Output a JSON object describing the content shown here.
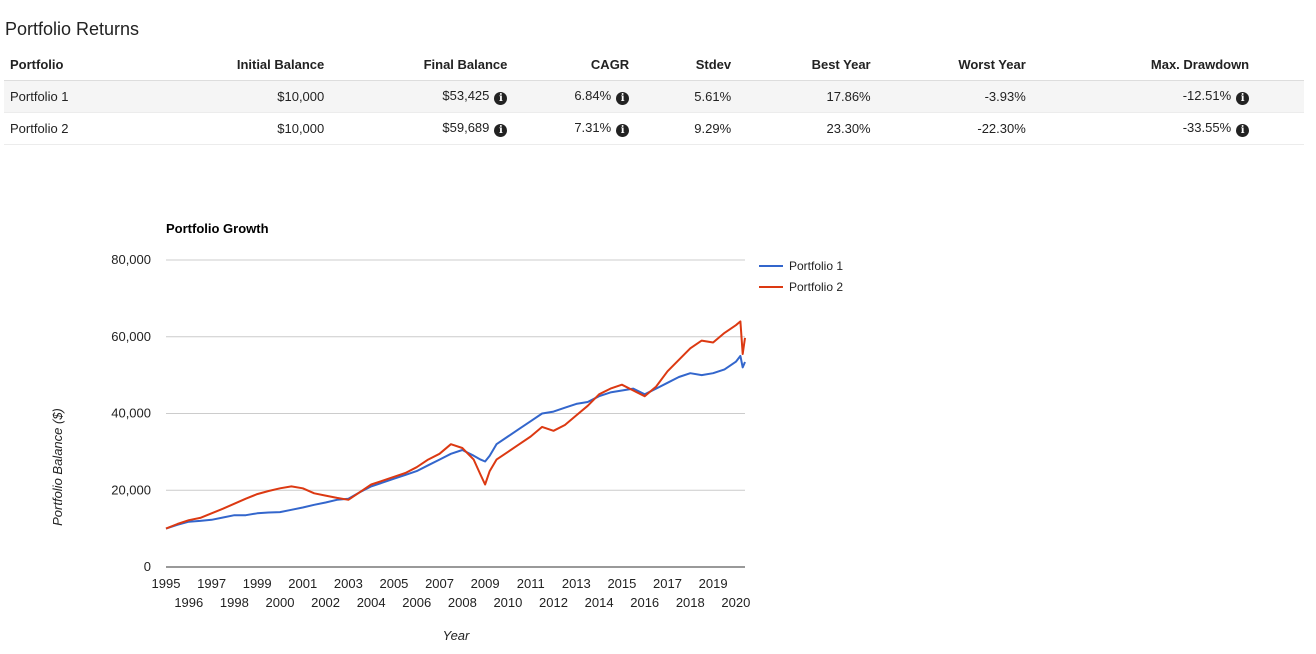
{
  "section": {
    "title": "Portfolio Returns"
  },
  "table": {
    "headers": {
      "portfolio": "Portfolio",
      "initial": "Initial Balance",
      "final": "Final Balance",
      "cagr": "CAGR",
      "stdev": "Stdev",
      "best": "Best Year",
      "worst": "Worst Year",
      "drawdown": "Max. Drawdown"
    },
    "rows": [
      {
        "portfolio": "Portfolio 1",
        "initial": "$10,000",
        "final": "$53,425",
        "cagr": "6.84%",
        "stdev": "5.61%",
        "best": "17.86%",
        "worst": "-3.93%",
        "drawdown": "-12.51%"
      },
      {
        "portfolio": "Portfolio 2",
        "initial": "$10,000",
        "final": "$59,689",
        "cagr": "7.31%",
        "stdev": "9.29%",
        "best": "23.30%",
        "worst": "-22.30%",
        "drawdown": "-33.55%"
      }
    ],
    "info_icon": "info-circle-icon"
  },
  "chart_data": {
    "type": "line",
    "title": "Portfolio Growth",
    "xlabel": "Year",
    "ylabel": "Portfolio Balance ($)",
    "ylim": [
      0,
      80000
    ],
    "xlim": [
      1995,
      2020.4
    ],
    "yticks": [
      "0",
      "20,000",
      "40,000",
      "60,000",
      "80,000"
    ],
    "xticks_top": [
      "1995",
      "1997",
      "1999",
      "2001",
      "2003",
      "2005",
      "2007",
      "2009",
      "2011",
      "2013",
      "2015",
      "2017",
      "2019"
    ],
    "xticks_bottom": [
      "1996",
      "1998",
      "2000",
      "2002",
      "2004",
      "2006",
      "2008",
      "2010",
      "2012",
      "2014",
      "2016",
      "2018",
      "2020"
    ],
    "grid": true,
    "legend": "top-right",
    "series": [
      {
        "name": "Portfolio 1",
        "color": "#3366cc",
        "x": [
          1995.0,
          1995.5,
          1996.0,
          1996.5,
          1997.0,
          1997.5,
          1998.0,
          1998.5,
          1999.0,
          1999.5,
          2000.0,
          2000.5,
          2001.0,
          2001.5,
          2002.0,
          2002.5,
          2003.0,
          2003.5,
          2004.0,
          2004.5,
          2005.0,
          2005.5,
          2006.0,
          2006.5,
          2007.0,
          2007.5,
          2008.0,
          2008.5,
          2008.8,
          2009.0,
          2009.2,
          2009.5,
          2010.0,
          2010.5,
          2011.0,
          2011.5,
          2012.0,
          2012.5,
          2013.0,
          2013.5,
          2014.0,
          2014.5,
          2015.0,
          2015.5,
          2016.0,
          2016.5,
          2017.0,
          2017.5,
          2018.0,
          2018.5,
          2019.0,
          2019.5,
          2020.0,
          2020.2,
          2020.3,
          2020.4
        ],
        "values": [
          10000,
          11000,
          11800,
          12000,
          12300,
          12900,
          13500,
          13500,
          14000,
          14200,
          14300,
          14900,
          15500,
          16200,
          16800,
          17500,
          17800,
          19500,
          21000,
          22000,
          23000,
          24000,
          25000,
          26500,
          28000,
          29500,
          30500,
          29000,
          28000,
          27500,
          29000,
          32000,
          34000,
          36000,
          38000,
          40000,
          40500,
          41500,
          42500,
          43000,
          44500,
          45500,
          46000,
          46500,
          45000,
          46500,
          48000,
          49500,
          50500,
          50000,
          50500,
          51500,
          53500,
          55000,
          52000,
          53425
        ]
      },
      {
        "name": "Portfolio 2",
        "color": "#dc3912",
        "x": [
          1995.0,
          1995.5,
          1996.0,
          1996.5,
          1997.0,
          1997.5,
          1998.0,
          1998.5,
          1999.0,
          1999.5,
          2000.0,
          2000.5,
          2001.0,
          2001.5,
          2002.0,
          2002.5,
          2003.0,
          2003.5,
          2004.0,
          2004.5,
          2005.0,
          2005.5,
          2006.0,
          2006.5,
          2007.0,
          2007.5,
          2008.0,
          2008.5,
          2008.8,
          2009.0,
          2009.2,
          2009.5,
          2010.0,
          2010.5,
          2011.0,
          2011.5,
          2012.0,
          2012.5,
          2013.0,
          2013.5,
          2014.0,
          2014.5,
          2015.0,
          2015.5,
          2016.0,
          2016.5,
          2017.0,
          2017.5,
          2018.0,
          2018.5,
          2019.0,
          2019.5,
          2020.0,
          2020.2,
          2020.3,
          2020.4
        ],
        "values": [
          10000,
          11200,
          12200,
          12800,
          14000,
          15200,
          16500,
          17800,
          19000,
          19800,
          20500,
          21000,
          20500,
          19200,
          18600,
          18000,
          17500,
          19500,
          21500,
          22500,
          23500,
          24500,
          26000,
          28000,
          29500,
          32000,
          31000,
          28000,
          24000,
          21500,
          25000,
          28000,
          30000,
          32000,
          34000,
          36500,
          35500,
          37000,
          39500,
          42000,
          45000,
          46500,
          47500,
          46000,
          44500,
          47000,
          51000,
          54000,
          57000,
          59000,
          58500,
          61000,
          63000,
          64000,
          55500,
          59689
        ]
      }
    ]
  }
}
